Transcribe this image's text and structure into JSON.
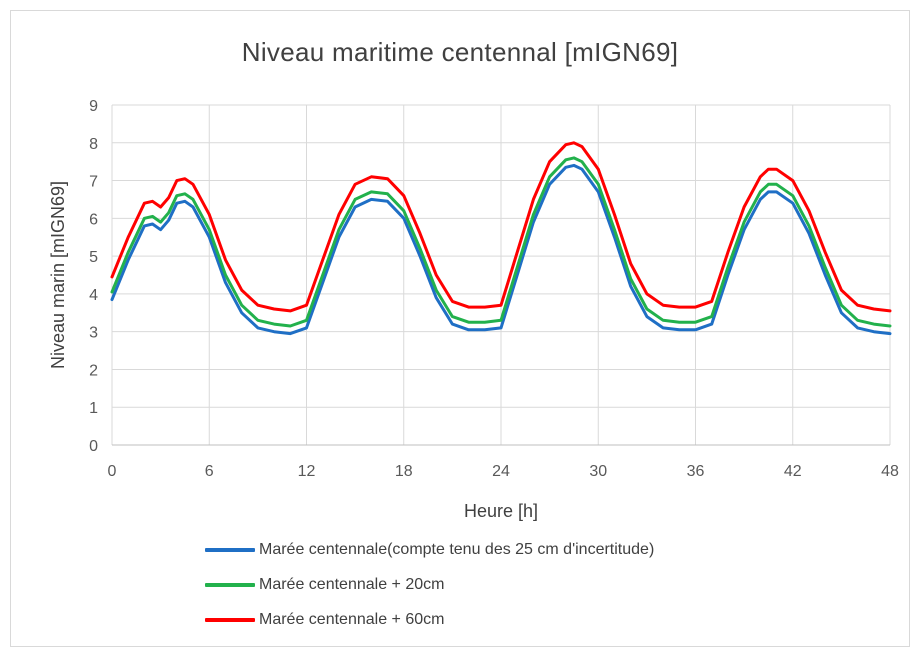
{
  "chart_data": {
    "type": "line",
    "title": "Niveau maritime centennal [mIGN69]",
    "xlabel": "Heure [h]",
    "ylabel": "Niveau marin [mIGN69]",
    "xlim": [
      0,
      48
    ],
    "ylim": [
      0,
      9
    ],
    "xticks": [
      "0",
      "6",
      "12",
      "18",
      "24",
      "30",
      "36",
      "42",
      "48"
    ],
    "yticks": [
      "0",
      "1",
      "2",
      "3",
      "4",
      "5",
      "6",
      "7",
      "8",
      "9"
    ],
    "grid": true,
    "legend_position": "bottom",
    "series": [
      {
        "name": "Marée centennale(compte tenu des 25 cm d'incertitude)",
        "color": "#1f6fc5",
        "points": [
          [
            0,
            3.85
          ],
          [
            1,
            4.9
          ],
          [
            2,
            5.8
          ],
          [
            2.5,
            5.85
          ],
          [
            3,
            5.7
          ],
          [
            3.5,
            5.95
          ],
          [
            4,
            6.4
          ],
          [
            4.5,
            6.45
          ],
          [
            5,
            6.3
          ],
          [
            6,
            5.5
          ],
          [
            7,
            4.3
          ],
          [
            8,
            3.5
          ],
          [
            9,
            3.1
          ],
          [
            10,
            3.0
          ],
          [
            11,
            2.95
          ],
          [
            12,
            3.1
          ],
          [
            13,
            4.3
          ],
          [
            14,
            5.5
          ],
          [
            15,
            6.3
          ],
          [
            16,
            6.5
          ],
          [
            17,
            6.45
          ],
          [
            18,
            6.0
          ],
          [
            19,
            5.0
          ],
          [
            20,
            3.9
          ],
          [
            21,
            3.2
          ],
          [
            22,
            3.05
          ],
          [
            23,
            3.05
          ],
          [
            24,
            3.1
          ],
          [
            25,
            4.5
          ],
          [
            26,
            5.9
          ],
          [
            27,
            6.9
          ],
          [
            28,
            7.35
          ],
          [
            28.5,
            7.4
          ],
          [
            29,
            7.3
          ],
          [
            30,
            6.7
          ],
          [
            31,
            5.5
          ],
          [
            32,
            4.2
          ],
          [
            33,
            3.4
          ],
          [
            34,
            3.1
          ],
          [
            35,
            3.05
          ],
          [
            36,
            3.05
          ],
          [
            37,
            3.2
          ],
          [
            38,
            4.5
          ],
          [
            39,
            5.7
          ],
          [
            40,
            6.5
          ],
          [
            40.5,
            6.7
          ],
          [
            41,
            6.7
          ],
          [
            42,
            6.4
          ],
          [
            43,
            5.6
          ],
          [
            44,
            4.5
          ],
          [
            45,
            3.5
          ],
          [
            46,
            3.1
          ],
          [
            47,
            3.0
          ],
          [
            48,
            2.95
          ]
        ]
      },
      {
        "name": "Marée centennale + 20cm",
        "color": "#22b14c",
        "points": [
          [
            0,
            4.05
          ],
          [
            1,
            5.1
          ],
          [
            2,
            6.0
          ],
          [
            2.5,
            6.05
          ],
          [
            3,
            5.9
          ],
          [
            3.5,
            6.15
          ],
          [
            4,
            6.6
          ],
          [
            4.5,
            6.65
          ],
          [
            5,
            6.5
          ],
          [
            6,
            5.7
          ],
          [
            7,
            4.5
          ],
          [
            8,
            3.7
          ],
          [
            9,
            3.3
          ],
          [
            10,
            3.2
          ],
          [
            11,
            3.15
          ],
          [
            12,
            3.3
          ],
          [
            13,
            4.5
          ],
          [
            14,
            5.7
          ],
          [
            15,
            6.5
          ],
          [
            16,
            6.7
          ],
          [
            17,
            6.65
          ],
          [
            18,
            6.2
          ],
          [
            19,
            5.2
          ],
          [
            20,
            4.1
          ],
          [
            21,
            3.4
          ],
          [
            22,
            3.25
          ],
          [
            23,
            3.25
          ],
          [
            24,
            3.3
          ],
          [
            25,
            4.7
          ],
          [
            26,
            6.1
          ],
          [
            27,
            7.1
          ],
          [
            28,
            7.55
          ],
          [
            28.5,
            7.6
          ],
          [
            29,
            7.5
          ],
          [
            30,
            6.9
          ],
          [
            31,
            5.7
          ],
          [
            32,
            4.4
          ],
          [
            33,
            3.6
          ],
          [
            34,
            3.3
          ],
          [
            35,
            3.25
          ],
          [
            36,
            3.25
          ],
          [
            37,
            3.4
          ],
          [
            38,
            4.7
          ],
          [
            39,
            5.9
          ],
          [
            40,
            6.7
          ],
          [
            40.5,
            6.9
          ],
          [
            41,
            6.9
          ],
          [
            42,
            6.6
          ],
          [
            43,
            5.8
          ],
          [
            44,
            4.7
          ],
          [
            45,
            3.7
          ],
          [
            46,
            3.3
          ],
          [
            47,
            3.2
          ],
          [
            48,
            3.15
          ]
        ]
      },
      {
        "name": "Marée centennale + 60cm",
        "color": "#ff0000",
        "points": [
          [
            0,
            4.45
          ],
          [
            1,
            5.5
          ],
          [
            2,
            6.4
          ],
          [
            2.5,
            6.45
          ],
          [
            3,
            6.3
          ],
          [
            3.5,
            6.55
          ],
          [
            4,
            7.0
          ],
          [
            4.5,
            7.05
          ],
          [
            5,
            6.9
          ],
          [
            6,
            6.1
          ],
          [
            7,
            4.9
          ],
          [
            8,
            4.1
          ],
          [
            9,
            3.7
          ],
          [
            10,
            3.6
          ],
          [
            11,
            3.55
          ],
          [
            12,
            3.7
          ],
          [
            13,
            4.9
          ],
          [
            14,
            6.1
          ],
          [
            15,
            6.9
          ],
          [
            16,
            7.1
          ],
          [
            17,
            7.05
          ],
          [
            18,
            6.6
          ],
          [
            19,
            5.6
          ],
          [
            20,
            4.5
          ],
          [
            21,
            3.8
          ],
          [
            22,
            3.65
          ],
          [
            23,
            3.65
          ],
          [
            24,
            3.7
          ],
          [
            25,
            5.1
          ],
          [
            26,
            6.5
          ],
          [
            27,
            7.5
          ],
          [
            28,
            7.95
          ],
          [
            28.5,
            8.0
          ],
          [
            29,
            7.9
          ],
          [
            30,
            7.3
          ],
          [
            31,
            6.1
          ],
          [
            32,
            4.8
          ],
          [
            33,
            4.0
          ],
          [
            34,
            3.7
          ],
          [
            35,
            3.65
          ],
          [
            36,
            3.65
          ],
          [
            37,
            3.8
          ],
          [
            38,
            5.1
          ],
          [
            39,
            6.3
          ],
          [
            40,
            7.1
          ],
          [
            40.5,
            7.3
          ],
          [
            41,
            7.3
          ],
          [
            42,
            7.0
          ],
          [
            43,
            6.2
          ],
          [
            44,
            5.1
          ],
          [
            45,
            4.1
          ],
          [
            46,
            3.7
          ],
          [
            47,
            3.6
          ],
          [
            48,
            3.55
          ]
        ]
      }
    ]
  }
}
